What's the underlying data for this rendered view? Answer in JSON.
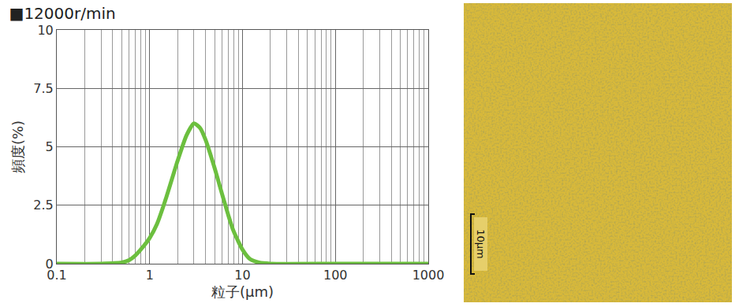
{
  "chart_data": {
    "type": "line",
    "title": "■12000r/min",
    "x_label": "粒子(μm)",
    "y_label": "頻度(%)",
    "log": "x",
    "grid": true,
    "color": "#6cbf3f",
    "x": [
      0.1,
      0.3,
      0.5,
      0.6,
      0.7,
      0.8,
      1.0,
      1.2,
      1.5,
      2.0,
      2.5,
      3.0,
      3.5,
      4.0,
      5.0,
      6.0,
      7.0,
      8.0,
      10,
      12,
      15,
      20,
      100,
      1000
    ],
    "values": [
      0,
      0,
      0.05,
      0.15,
      0.35,
      0.6,
      1.1,
      1.7,
      2.8,
      4.4,
      5.5,
      6.0,
      5.8,
      5.3,
      4.1,
      3.0,
      2.1,
      1.4,
      0.6,
      0.2,
      0.05,
      0,
      0,
      0
    ],
    "xlim": [
      0.1,
      1000
    ],
    "xticks": [
      0.1,
      1,
      10,
      100,
      1000
    ],
    "ylim": [
      0,
      10
    ],
    "yticks": [
      0,
      2.5,
      5,
      7.5,
      10
    ]
  },
  "micrograph": {
    "scale_label": "10μm"
  }
}
